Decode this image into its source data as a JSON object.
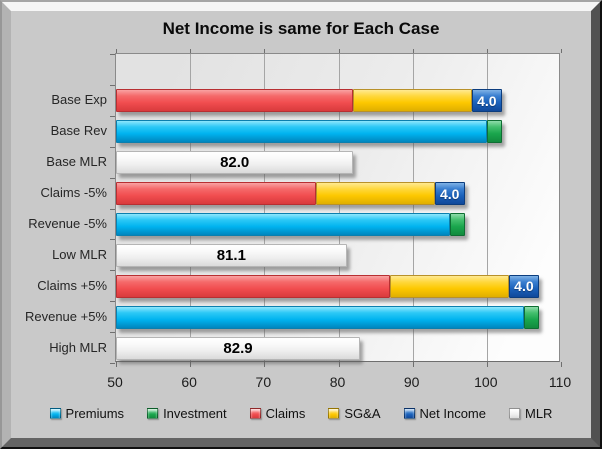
{
  "title": "Net Income is same for Each Case",
  "chart_data": {
    "type": "bar",
    "orientation": "horizontal-stacked",
    "title": "Net Income is same for Each Case",
    "xlabel": "",
    "ylabel": "",
    "xlim": [
      50,
      110
    ],
    "x_ticks": [
      50,
      60,
      70,
      80,
      90,
      100,
      110
    ],
    "grid": true,
    "legend_position": "bottom",
    "legend": [
      "Premiums",
      "Investment",
      "Claims",
      "SG&A",
      "Net Income",
      "MLR"
    ],
    "series_colors": {
      "Premiums": {
        "light": "#8ee7fd",
        "mid": "#2cc8f6",
        "fill": "#00b3ef",
        "dark": "#0086be",
        "border": "#0b7fae"
      },
      "Investment": {
        "light": "#8fdcaa",
        "mid": "#44bf6e",
        "fill": "#1aa64d",
        "dark": "#128a3d",
        "border": "#0e6e33"
      },
      "Claims": {
        "light": "#f9a3a3",
        "mid": "#f56a6b",
        "fill": "#f14d4f",
        "dark": "#d83a3d",
        "border": "#b72f32"
      },
      "SG&A": {
        "light": "#ffe992",
        "mid": "#ffd83e",
        "fill": "#fdc800",
        "dark": "#dfae00",
        "border": "#b8912a"
      },
      "Net Income": {
        "light": "#7fb2e6",
        "mid": "#3a7fd0",
        "fill": "#1b62bb",
        "dark": "#10489a",
        "border": "#0c3d7e"
      },
      "MLR": {
        "light": "#ffffff",
        "mid": "#fafafa",
        "fill": "#efefef",
        "dark": "#dadada",
        "border": "#b5b5b5"
      }
    },
    "rows": [
      {
        "category": "Base Exp",
        "segments": [
          {
            "series": "Claims",
            "start": 0,
            "end": 82,
            "value": 82
          },
          {
            "series": "SG&A",
            "start": 82,
            "end": 98,
            "value": 16
          },
          {
            "series": "Net Income",
            "start": 98,
            "end": 102,
            "value": 4,
            "label": "4.0"
          }
        ]
      },
      {
        "category": "Base Rev",
        "segments": [
          {
            "series": "Premiums",
            "start": 0,
            "end": 100,
            "value": 100
          },
          {
            "series": "Investment",
            "start": 100,
            "end": 102,
            "value": 2
          }
        ]
      },
      {
        "category": "Base MLR",
        "segments": [
          {
            "series": "MLR",
            "start": 0,
            "end": 82,
            "value": 82,
            "label": "82.0"
          }
        ]
      },
      {
        "category": "Claims -5%",
        "segments": [
          {
            "series": "Claims",
            "start": 0,
            "end": 77,
            "value": 77
          },
          {
            "series": "SG&A",
            "start": 77,
            "end": 93,
            "value": 16
          },
          {
            "series": "Net Income",
            "start": 93,
            "end": 97,
            "value": 4,
            "label": "4.0"
          }
        ]
      },
      {
        "category": "Revenue -5%",
        "segments": [
          {
            "series": "Premiums",
            "start": 0,
            "end": 95,
            "value": 95
          },
          {
            "series": "Investment",
            "start": 95,
            "end": 97,
            "value": 2
          }
        ]
      },
      {
        "category": "Low MLR",
        "segments": [
          {
            "series": "MLR",
            "start": 0,
            "end": 81.1,
            "value": 81.1,
            "label": "81.1"
          }
        ]
      },
      {
        "category": "Claims +5%",
        "segments": [
          {
            "series": "Claims",
            "start": 0,
            "end": 87,
            "value": 87
          },
          {
            "series": "SG&A",
            "start": 87,
            "end": 103,
            "value": 16
          },
          {
            "series": "Net Income",
            "start": 103,
            "end": 107,
            "value": 4,
            "label": "4.0"
          }
        ]
      },
      {
        "category": "Revenue +5%",
        "segments": [
          {
            "series": "Premiums",
            "start": 0,
            "end": 105,
            "value": 105
          },
          {
            "series": "Investment",
            "start": 105,
            "end": 107,
            "value": 2
          }
        ]
      },
      {
        "category": "High MLR",
        "segments": [
          {
            "series": "MLR",
            "start": 0,
            "end": 82.9,
            "value": 82.9,
            "label": "82.9"
          }
        ]
      }
    ]
  }
}
